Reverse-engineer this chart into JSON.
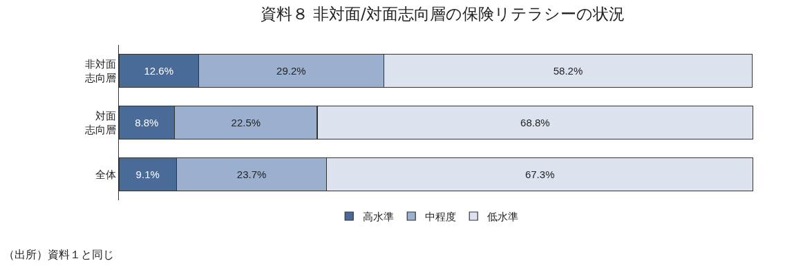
{
  "chart_data": {
    "type": "bar",
    "orientation": "horizontal",
    "stacked": true,
    "title": "資料８ 非対面/対面志向層の保険リテラシーの状況",
    "categories": [
      "非対面志向層",
      "対面志向層",
      "全体"
    ],
    "series": [
      {
        "name": "高水準",
        "color": "#4a6a98",
        "values": [
          12.6,
          8.8,
          9.1
        ],
        "value_labels": [
          "12.6%",
          "8.8%",
          "9.1%"
        ]
      },
      {
        "name": "中程度",
        "color": "#9bb0cf",
        "values": [
          29.2,
          22.5,
          23.7
        ],
        "value_labels": [
          "29.2%",
          "22.5%",
          "23.7%"
        ]
      },
      {
        "name": "低水準",
        "color": "#dde3ee",
        "values": [
          58.2,
          68.8,
          67.3
        ],
        "value_labels": [
          "58.2%",
          "68.8%",
          "67.3%"
        ]
      }
    ],
    "legend": "bottom",
    "grid": false,
    "tick_labels": "y",
    "annotations": [
      "（出所）資料１と同じ"
    ]
  }
}
